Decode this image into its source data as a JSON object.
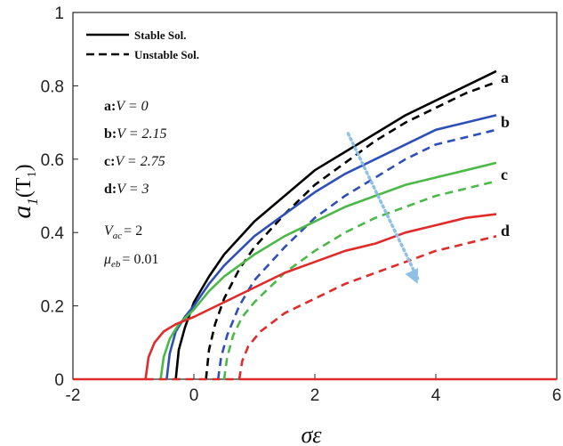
{
  "chart_data": {
    "type": "line",
    "xlabel": "σε",
    "ylabel_main": "a",
    "ylabel_sub": "1",
    "ylabel_arg": "(T",
    "ylabel_arg_sub": "1",
    "ylabel_close": ")",
    "xlim": [
      -2,
      6
    ],
    "ylim": [
      0,
      1
    ],
    "xticks": [
      -2,
      0,
      2,
      4,
      6
    ],
    "xtick_labels": [
      "-2",
      "0",
      "2",
      "4",
      "6"
    ],
    "yticks": [
      0,
      0.2,
      0.4,
      0.6,
      0.8,
      1
    ],
    "ytick_labels": [
      "0",
      "0.2",
      "0.4",
      "0.6",
      "0.8",
      "1"
    ],
    "legend": [
      {
        "label": "Stable Sol.",
        "style": "solid"
      },
      {
        "label": "Unstable Sol.",
        "style": "dashed"
      }
    ],
    "annotations": {
      "cases": [
        {
          "key": "a:",
          "expr": "V = 0"
        },
        {
          "key": "b:",
          "expr": "V = 2.15"
        },
        {
          "key": "c:",
          "expr": "V = 2.75"
        },
        {
          "key": "d:",
          "expr": "V = 3"
        }
      ],
      "vac": {
        "sym": "V",
        "sub": "ac",
        "value": "= 2"
      },
      "mueb": {
        "sym": "μ",
        "sub": "eb",
        "value": "= 0.01"
      }
    },
    "series": [
      {
        "name": "a",
        "color": "#000000",
        "stable": {
          "x": [
            -0.3,
            -0.25,
            -0.15,
            0,
            0.25,
            0.5,
            1,
            1.5,
            2,
            2.5,
            3,
            3.5,
            4,
            4.5,
            5
          ],
          "y": [
            0,
            0.08,
            0.14,
            0.21,
            0.28,
            0.34,
            0.43,
            0.5,
            0.57,
            0.62,
            0.67,
            0.72,
            0.76,
            0.8,
            0.84
          ]
        },
        "unstable": {
          "x": [
            0.2,
            0.25,
            0.35,
            0.5,
            0.75,
            1,
            1.5,
            2,
            2.5,
            3,
            3.5,
            4,
            4.5,
            5
          ],
          "y": [
            0,
            0.08,
            0.15,
            0.22,
            0.3,
            0.36,
            0.45,
            0.53,
            0.59,
            0.65,
            0.7,
            0.74,
            0.78,
            0.81
          ]
        }
      },
      {
        "name": "b",
        "color": "#2f4fb8",
        "stable": {
          "x": [
            -0.45,
            -0.4,
            -0.3,
            -0.15,
            0,
            0.25,
            0.5,
            1,
            1.5,
            2,
            2.5,
            3,
            3.5,
            4,
            4.5,
            5
          ],
          "y": [
            0,
            0.07,
            0.13,
            0.17,
            0.2,
            0.26,
            0.31,
            0.39,
            0.45,
            0.51,
            0.56,
            0.6,
            0.64,
            0.68,
            0.7,
            0.72
          ]
        },
        "unstable": {
          "x": [
            0.4,
            0.45,
            0.55,
            0.75,
            1,
            1.5,
            2,
            2.5,
            3,
            3.5,
            4,
            4.5,
            5
          ],
          "y": [
            0,
            0.06,
            0.12,
            0.2,
            0.27,
            0.36,
            0.44,
            0.5,
            0.55,
            0.6,
            0.64,
            0.66,
            0.68
          ]
        }
      },
      {
        "name": "c",
        "color": "#4cb848",
        "stable": {
          "x": [
            -0.55,
            -0.5,
            -0.4,
            -0.25,
            0,
            0.25,
            0.5,
            1,
            1.5,
            2,
            2.5,
            3,
            3.5,
            4,
            4.5,
            5
          ],
          "y": [
            0,
            0.06,
            0.11,
            0.15,
            0.19,
            0.24,
            0.28,
            0.34,
            0.39,
            0.43,
            0.47,
            0.5,
            0.53,
            0.55,
            0.57,
            0.59
          ]
        },
        "unstable": {
          "x": [
            0.5,
            0.55,
            0.65,
            0.8,
            1,
            1.5,
            2,
            2.5,
            3,
            3.5,
            4,
            4.5,
            5
          ],
          "y": [
            0,
            0.06,
            0.12,
            0.17,
            0.21,
            0.29,
            0.35,
            0.4,
            0.44,
            0.47,
            0.5,
            0.52,
            0.54
          ]
        }
      },
      {
        "name": "d",
        "color": "#e02b2b",
        "stable": {
          "x": [
            -0.8,
            -0.75,
            -0.65,
            -0.5,
            -0.3,
            0,
            0.5,
            1,
            1.5,
            2,
            2.5,
            3,
            3.5,
            4,
            4.5,
            5
          ],
          "y": [
            0,
            0.06,
            0.1,
            0.13,
            0.15,
            0.17,
            0.21,
            0.25,
            0.29,
            0.32,
            0.35,
            0.37,
            0.4,
            0.42,
            0.44,
            0.45
          ]
        },
        "unstable": {
          "x": [
            0.75,
            0.8,
            0.9,
            1.1,
            1.5,
            2,
            2.5,
            3,
            3.5,
            4,
            4.5,
            5
          ],
          "y": [
            0,
            0.05,
            0.09,
            0.13,
            0.18,
            0.22,
            0.26,
            0.29,
            0.32,
            0.35,
            0.37,
            0.39
          ]
        },
        "zero_line": {
          "x": [
            -2,
            -0.8,
            0.75,
            6
          ],
          "y": [
            0,
            0,
            0,
            0
          ]
        }
      }
    ],
    "arrow": {
      "from": [
        2.55,
        0.67
      ],
      "to": [
        3.7,
        0.26
      ],
      "color": "#8fc0e8"
    }
  }
}
